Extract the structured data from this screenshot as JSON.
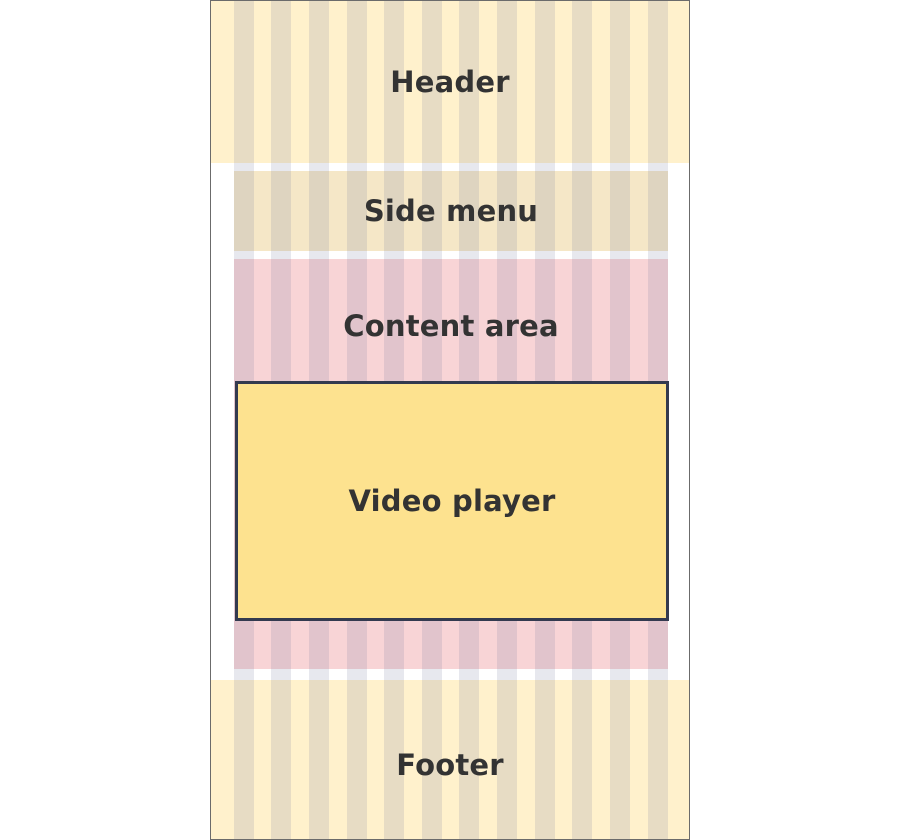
{
  "layout_diagram": {
    "header": "Header",
    "side_menu": "Side menu",
    "content_area": "Content area",
    "video_player": "Video player",
    "footer": "Footer"
  },
  "colors": {
    "page_background": "#ffffff",
    "header_footer_fill": "#fff1cc",
    "side_menu_fill": "#f5e7c7",
    "content_area_fill": "#f8d4d6",
    "video_player_fill": "#fde28f",
    "video_player_border": "#333a4f",
    "grid_column_overlay": "rgba(120,130,160,0.18)",
    "text": "#333333"
  },
  "grid": {
    "columns": 12
  }
}
